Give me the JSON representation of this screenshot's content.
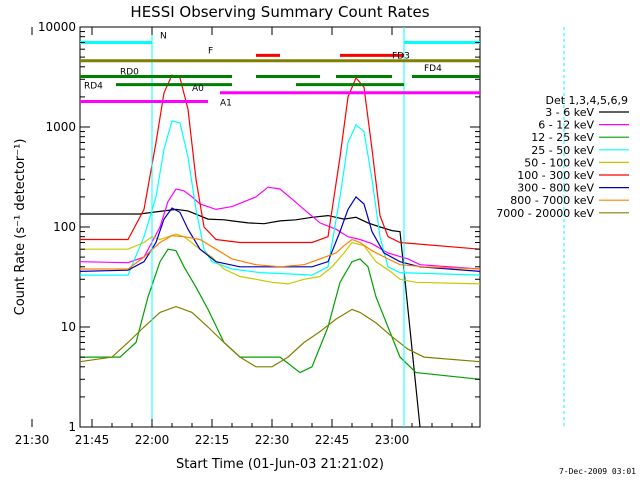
{
  "chart_data": {
    "type": "line",
    "title": "HESSI Observing Summary Count Rates",
    "xlabel": "Start Time (01-Jun-03 21:21:02)",
    "ylabel": "Count Rate (s⁻¹ detector⁻¹)",
    "y_scale": "log",
    "ylim": [
      1,
      10000
    ],
    "xlim_minutes": [
      21.0,
      121.0
    ],
    "x_tick_labels": [
      "21:30",
      "21:45",
      "22:00",
      "22:15",
      "22:30",
      "22:45",
      "23:00"
    ],
    "x_tick_minutes": [
      9,
      24,
      39,
      54,
      69,
      84,
      99
    ],
    "y_tick_labels": [
      "1",
      "10",
      "100",
      "1000",
      "10000"
    ],
    "legend_title": "Det 1,3,4,5,6,9",
    "legend_position": "right",
    "series": [
      {
        "name": "3 - 6 keV",
        "color": "#000000",
        "points": [
          [
            0,
            135
          ],
          [
            12,
            135
          ],
          [
            15,
            135
          ],
          [
            18,
            140
          ],
          [
            21,
            145
          ],
          [
            24,
            150
          ],
          [
            27,
            145
          ],
          [
            32,
            120
          ],
          [
            36,
            118
          ],
          [
            38,
            115
          ],
          [
            42,
            110
          ],
          [
            46,
            108
          ],
          [
            50,
            115
          ],
          [
            54,
            118
          ],
          [
            58,
            125
          ],
          [
            62,
            130
          ],
          [
            66,
            120
          ],
          [
            69,
            125
          ],
          [
            72,
            110
          ],
          [
            75,
            100
          ],
          [
            78,
            92
          ],
          [
            80,
            90
          ],
          [
            85,
            0
          ]
        ]
      },
      {
        "name": "6 - 12 keV",
        "color": "#ff00ff",
        "points": [
          [
            0,
            45
          ],
          [
            12,
            44
          ],
          [
            16,
            50
          ],
          [
            20,
            100
          ],
          [
            22,
            180
          ],
          [
            24,
            240
          ],
          [
            26,
            230
          ],
          [
            28,
            200
          ],
          [
            30,
            170
          ],
          [
            34,
            150
          ],
          [
            38,
            160
          ],
          [
            44,
            200
          ],
          [
            47,
            250
          ],
          [
            50,
            240
          ],
          [
            53,
            190
          ],
          [
            56,
            150
          ],
          [
            60,
            110
          ],
          [
            64,
            95
          ],
          [
            67,
            80
          ],
          [
            70,
            75
          ],
          [
            73,
            68
          ],
          [
            77,
            55
          ],
          [
            82,
            48
          ],
          [
            85,
            42
          ],
          [
            100,
            38
          ]
        ]
      },
      {
        "name": "12 - 25 keV",
        "color": "#00a000",
        "points": [
          [
            0,
            5
          ],
          [
            10,
            5
          ],
          [
            14,
            7
          ],
          [
            17,
            20
          ],
          [
            20,
            45
          ],
          [
            22,
            60
          ],
          [
            24,
            58
          ],
          [
            26,
            40
          ],
          [
            29,
            25
          ],
          [
            32,
            15
          ],
          [
            36,
            7
          ],
          [
            40,
            5
          ],
          [
            50,
            5
          ],
          [
            55,
            3.5
          ],
          [
            58,
            4
          ],
          [
            62,
            10
          ],
          [
            65,
            28
          ],
          [
            68,
            45
          ],
          [
            70,
            48
          ],
          [
            72,
            40
          ],
          [
            74,
            20
          ],
          [
            77,
            10
          ],
          [
            80,
            5
          ],
          [
            84,
            3.5
          ],
          [
            100,
            3
          ]
        ]
      },
      {
        "name": "25 - 50 keV",
        "color": "#00ffff",
        "points": [
          [
            0,
            33
          ],
          [
            12,
            33
          ],
          [
            16,
            80
          ],
          [
            19,
            200
          ],
          [
            21,
            600
          ],
          [
            23,
            1150
          ],
          [
            25,
            1100
          ],
          [
            27,
            500
          ],
          [
            29,
            150
          ],
          [
            31,
            60
          ],
          [
            33,
            45
          ],
          [
            38,
            38
          ],
          [
            45,
            35
          ],
          [
            52,
            34
          ],
          [
            58,
            33
          ],
          [
            62,
            40
          ],
          [
            65,
            200
          ],
          [
            67,
            700
          ],
          [
            69,
            1050
          ],
          [
            71,
            900
          ],
          [
            73,
            300
          ],
          [
            75,
            80
          ],
          [
            77,
            40
          ],
          [
            80,
            35
          ],
          [
            100,
            33
          ]
        ]
      },
      {
        "name": "50 - 100 keV",
        "color": "#c8c800",
        "points": [
          [
            0,
            60
          ],
          [
            12,
            60
          ],
          [
            16,
            70
          ],
          [
            18,
            80
          ],
          [
            20,
            75
          ],
          [
            24,
            85
          ],
          [
            26,
            80
          ],
          [
            30,
            60
          ],
          [
            33,
            50
          ],
          [
            36,
            38
          ],
          [
            40,
            32
          ],
          [
            44,
            30
          ],
          [
            48,
            28
          ],
          [
            52,
            27
          ],
          [
            56,
            30
          ],
          [
            60,
            32
          ],
          [
            63,
            40
          ],
          [
            66,
            55
          ],
          [
            68,
            70
          ],
          [
            71,
            65
          ],
          [
            74,
            45
          ],
          [
            78,
            35
          ],
          [
            80,
            30
          ],
          [
            84,
            28
          ],
          [
            100,
            27
          ]
        ]
      },
      {
        "name": "100 - 300 keV",
        "color": "#ff0000",
        "points": [
          [
            0,
            75
          ],
          [
            12,
            75
          ],
          [
            16,
            150
          ],
          [
            19,
            700
          ],
          [
            21,
            2200
          ],
          [
            23,
            3300
          ],
          [
            25,
            3100
          ],
          [
            27,
            1500
          ],
          [
            29,
            300
          ],
          [
            31,
            100
          ],
          [
            34,
            75
          ],
          [
            40,
            70
          ],
          [
            50,
            70
          ],
          [
            58,
            70
          ],
          [
            62,
            80
          ],
          [
            65,
            500
          ],
          [
            67,
            2000
          ],
          [
            69,
            3100
          ],
          [
            71,
            2500
          ],
          [
            73,
            600
          ],
          [
            75,
            130
          ],
          [
            77,
            80
          ],
          [
            80,
            70
          ],
          [
            100,
            60
          ]
        ]
      },
      {
        "name": "300 - 800 keV",
        "color": "#0000c0",
        "points": [
          [
            0,
            36
          ],
          [
            12,
            37
          ],
          [
            16,
            45
          ],
          [
            19,
            70
          ],
          [
            21,
            120
          ],
          [
            23,
            155
          ],
          [
            25,
            140
          ],
          [
            27,
            95
          ],
          [
            30,
            60
          ],
          [
            34,
            45
          ],
          [
            40,
            40
          ],
          [
            50,
            40
          ],
          [
            58,
            40
          ],
          [
            62,
            45
          ],
          [
            65,
            90
          ],
          [
            67,
            150
          ],
          [
            69,
            200
          ],
          [
            71,
            170
          ],
          [
            73,
            90
          ],
          [
            76,
            55
          ],
          [
            80,
            45
          ],
          [
            85,
            40
          ],
          [
            100,
            36
          ]
        ]
      },
      {
        "name": "800 - 7000 keV",
        "color": "#ff8000",
        "points": [
          [
            0,
            38
          ],
          [
            12,
            38
          ],
          [
            16,
            50
          ],
          [
            20,
            70
          ],
          [
            23,
            82
          ],
          [
            26,
            80
          ],
          [
            30,
            75
          ],
          [
            34,
            60
          ],
          [
            38,
            48
          ],
          [
            44,
            42
          ],
          [
            50,
            40
          ],
          [
            56,
            42
          ],
          [
            60,
            48
          ],
          [
            64,
            55
          ],
          [
            66,
            65
          ],
          [
            68,
            75
          ],
          [
            70,
            70
          ],
          [
            73,
            58
          ],
          [
            77,
            48
          ],
          [
            80,
            42
          ],
          [
            86,
            40
          ],
          [
            100,
            38
          ]
        ]
      },
      {
        "name": "7000 - 20000 keV",
        "color": "#808000",
        "points": [
          [
            0,
            4.5
          ],
          [
            8,
            5
          ],
          [
            12,
            7
          ],
          [
            16,
            10
          ],
          [
            20,
            14
          ],
          [
            24,
            16
          ],
          [
            28,
            14
          ],
          [
            32,
            10
          ],
          [
            36,
            7
          ],
          [
            40,
            5
          ],
          [
            44,
            4
          ],
          [
            48,
            4
          ],
          [
            52,
            5
          ],
          [
            56,
            7
          ],
          [
            60,
            9
          ],
          [
            64,
            12
          ],
          [
            68,
            15
          ],
          [
            70,
            14
          ],
          [
            74,
            11
          ],
          [
            78,
            8
          ],
          [
            82,
            6
          ],
          [
            86,
            5
          ],
          [
            100,
            4.5
          ]
        ]
      }
    ],
    "flag_annotations": [
      {
        "label": "N",
        "color": "#00ffff",
        "level": 7000,
        "segments": [
          [
            0,
            18
          ],
          [
            81,
            100
          ]
        ]
      },
      {
        "label": "F",
        "color": "#ff0000",
        "level": 5200,
        "segments": [
          [
            44,
            50
          ],
          [
            65,
            81
          ]
        ]
      },
      {
        "label": "FD3",
        "color": "#808000",
        "level": 4600,
        "segments": [
          [
            0,
            100
          ]
        ]
      },
      {
        "label": "FD4",
        "color": "#808000",
        "level": 4000,
        "segments": []
      },
      {
        "label": "RD0",
        "color": "#008000",
        "level": 3200,
        "segments": [
          [
            0,
            38
          ],
          [
            44,
            60
          ],
          [
            64,
            78
          ],
          [
            83,
            100
          ]
        ]
      },
      {
        "label": "RD4",
        "color": "#008000",
        "level": 2650,
        "segments": [
          [
            9,
            38
          ],
          [
            54,
            81
          ]
        ]
      },
      {
        "label": "A0",
        "color": "#ff00ff",
        "level": 2200,
        "segments": [
          [
            35,
            100
          ]
        ]
      },
      {
        "label": "A1",
        "color": "#ff00ff",
        "level": 1800,
        "segments": [
          [
            0,
            32
          ]
        ]
      }
    ]
  },
  "footer": {
    "timestamp": "7-Dec-2009 03:01"
  }
}
